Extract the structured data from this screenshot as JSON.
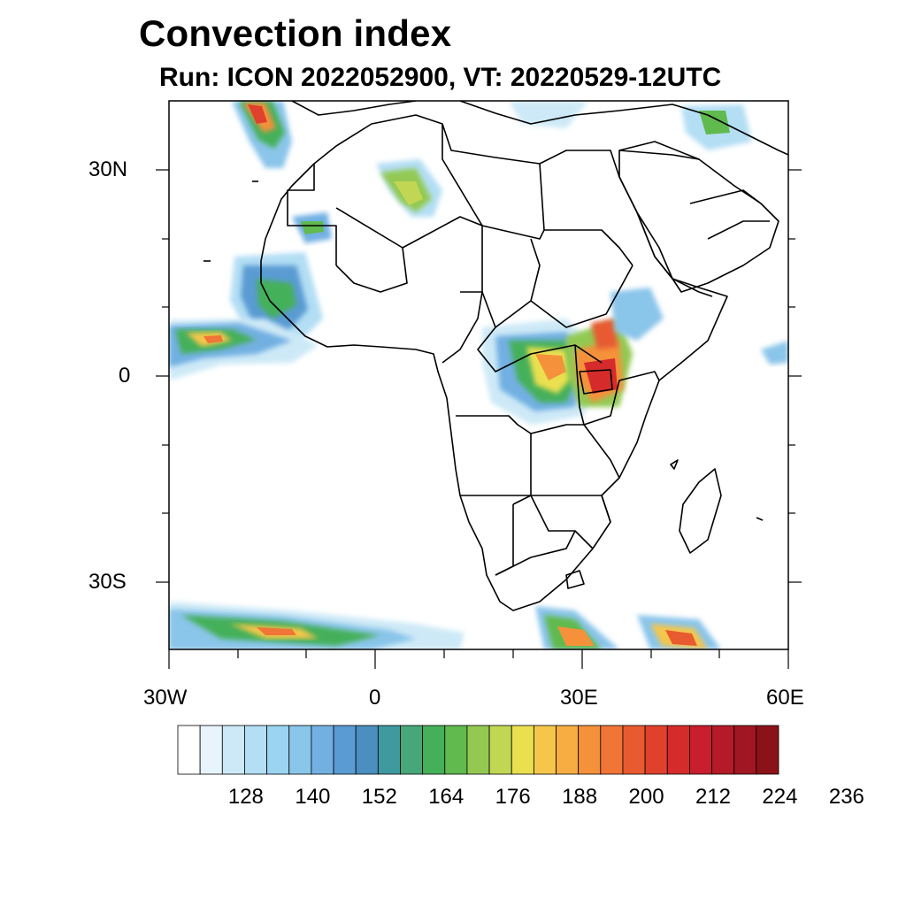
{
  "title": "Convection index",
  "subtitle": "Run: ICON 2022052900,  VT: 20220529-12UTC",
  "axes": {
    "lat_labels": [
      "30N",
      "0",
      "30S"
    ],
    "lon_labels": [
      "30W",
      "0",
      "30E",
      "60E"
    ]
  },
  "colorbar": {
    "labels": [
      "128",
      "140",
      "152",
      "164",
      "176",
      "188",
      "200",
      "212",
      "224",
      "236"
    ],
    "colors": [
      "#ffffff",
      "#e8f4fb",
      "#cde9f7",
      "#b3def4",
      "#9ad4f1",
      "#8ac5ea",
      "#72b0e2",
      "#5a9bd3",
      "#4a8fbf",
      "#3f9a9f",
      "#48a77a",
      "#45b05a",
      "#60ba4e",
      "#93c952",
      "#c1d754",
      "#eadf4f",
      "#f5c64a",
      "#f7ad42",
      "#f5913a",
      "#f07536",
      "#e85a30",
      "#e0412c",
      "#d62b2b",
      "#c81e2d",
      "#b51a28",
      "#a01622",
      "#8c1219"
    ]
  },
  "chart_data": {
    "type": "heatmap",
    "title": "Convection index",
    "subtitle": "Run: ICON 2022052900,  VT: 20220529-12UTC",
    "x_range": [
      "30W",
      "60E"
    ],
    "y_range": [
      "40S",
      "40N"
    ],
    "contour_levels": [
      120,
      124,
      128,
      132,
      136,
      140,
      144,
      148,
      152,
      156,
      160,
      164,
      168,
      172,
      176,
      180,
      184,
      188,
      192,
      196,
      200,
      204,
      208,
      212,
      216,
      220,
      224,
      228,
      232,
      236,
      240
    ],
    "colorbar_tick_labels": [
      "128",
      "140",
      "152",
      "164",
      "176",
      "188",
      "200",
      "212",
      "224",
      "236"
    ]
  }
}
